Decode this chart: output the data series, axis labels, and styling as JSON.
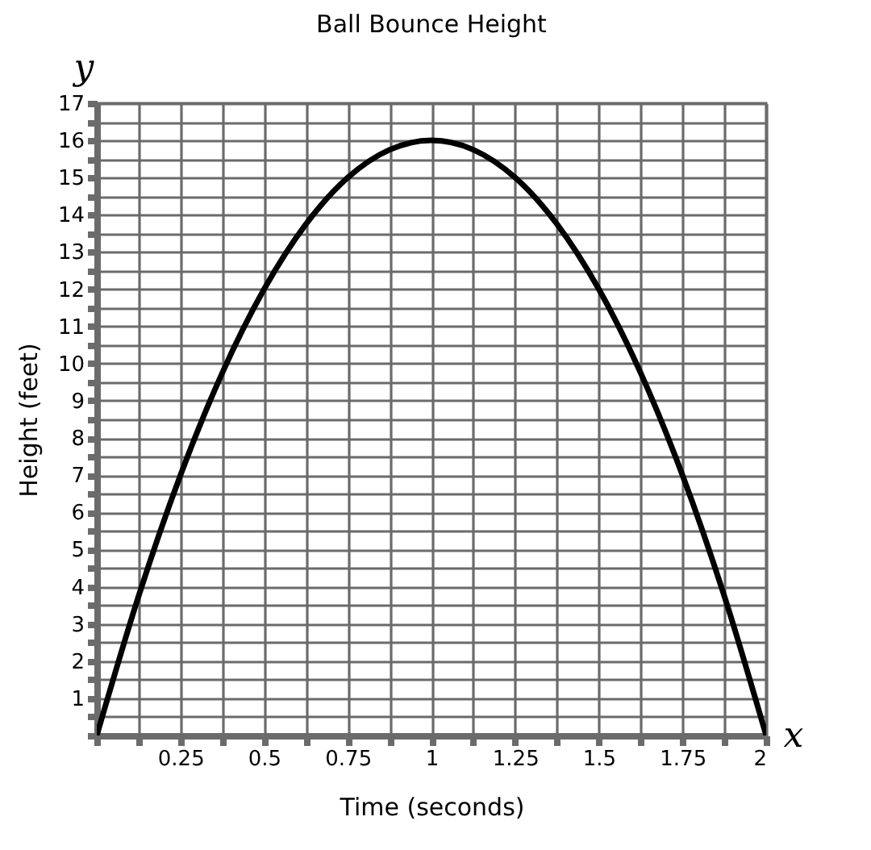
{
  "chart_data": {
    "type": "line",
    "title": "Ball Bounce Height",
    "xlabel": "Time (seconds)",
    "ylabel": "Height (feet)",
    "x": [
      0,
      0.125,
      0.25,
      0.375,
      0.5,
      0.625,
      0.75,
      0.875,
      1,
      1.125,
      1.25,
      1.375,
      1.5,
      1.625,
      1.75,
      1.875,
      2
    ],
    "series": [
      {
        "color": "#000000",
        "values": [
          0,
          3.75,
          7,
          9.75,
          12,
          13.75,
          15,
          15.75,
          16,
          15.75,
          15,
          13.75,
          12,
          9.75,
          7,
          3.75,
          0
        ]
      }
    ],
    "xlim": [
      0,
      2
    ],
    "ylim": [
      0,
      17
    ],
    "xticks": [
      {
        "value": 0,
        "label": null
      },
      {
        "value": 0.125,
        "label": null
      },
      0.25,
      {
        "value": 0.375,
        "label": null
      },
      0.5,
      {
        "value": 0.625,
        "label": null
      },
      0.75,
      {
        "value": 0.875,
        "label": null
      },
      1,
      {
        "value": 1.125,
        "label": null
      },
      1.25,
      {
        "value": 1.375,
        "label": null
      },
      1.5,
      {
        "value": 1.625,
        "label": null
      },
      1.75,
      {
        "value": 1.875,
        "label": null
      },
      2
    ],
    "yticks": [
      {
        "value": 0,
        "label": null
      },
      {
        "value": 0.5,
        "label": null
      },
      1,
      {
        "value": 1.5,
        "label": null
      },
      2,
      {
        "value": 2.5,
        "label": null
      },
      3,
      {
        "value": 3.5,
        "label": null
      },
      4,
      {
        "value": 4.5,
        "label": null
      },
      5,
      {
        "value": 5.5,
        "label": null
      },
      6,
      {
        "value": 6.5,
        "label": null
      },
      7,
      {
        "value": 7.5,
        "label": null
      },
      8,
      {
        "value": 8.5,
        "label": null
      },
      9,
      {
        "value": 9.5,
        "label": null
      },
      10,
      {
        "value": 10.5,
        "label": null
      },
      11,
      {
        "value": 11.5,
        "label": null
      },
      12,
      {
        "value": 12.5,
        "label": null
      },
      13,
      {
        "value": 13.5,
        "label": null
      },
      14,
      {
        "value": 14.5,
        "label": null
      },
      15,
      {
        "value": 15.5,
        "label": null
      },
      16,
      {
        "value": 16.5,
        "label": null
      },
      17
    ],
    "grid": true,
    "marker": "none",
    "line_style": "solid",
    "annotations": [
      "y",
      "x"
    ]
  }
}
